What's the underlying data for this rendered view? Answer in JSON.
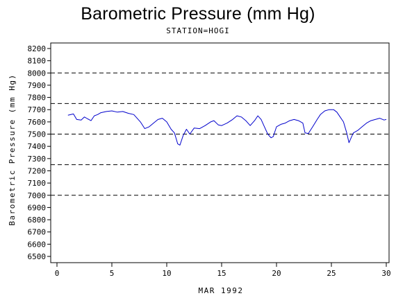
{
  "chart_data": {
    "type": "line",
    "title": "Barometric Pressure (mm Hg)",
    "subtitle": "STATION=HOGI",
    "xlabel": "MAR 1992",
    "ylabel": "Barometric Pressure (mm Hg)",
    "xlim": [
      0,
      30
    ],
    "ylim": [
      6500,
      8200
    ],
    "x_ticks": [
      0,
      5,
      10,
      15,
      20,
      25,
      30
    ],
    "y_ticks": [
      6500,
      6600,
      6700,
      6800,
      6900,
      7000,
      7100,
      7200,
      7300,
      7400,
      7500,
      7600,
      7700,
      7800,
      7900,
      8000,
      8100,
      8200
    ],
    "reference_lines": [
      7000,
      7250,
      7500,
      7750,
      8000
    ],
    "grid": false,
    "series": [
      {
        "color": "#0000cc",
        "x": [
          1.0,
          1.5,
          1.8,
          2.2,
          2.5,
          2.8,
          3.1,
          3.4,
          3.7,
          4.0,
          4.5,
          5.0,
          5.5,
          6.0,
          6.5,
          7.0,
          7.3,
          7.6,
          8.0,
          8.4,
          8.8,
          9.2,
          9.6,
          10.0,
          10.4,
          10.7,
          11.0,
          11.2,
          11.5,
          11.8,
          12.1,
          12.5,
          13.0,
          13.5,
          14.0,
          14.3,
          14.7,
          15.0,
          15.5,
          16.0,
          16.4,
          16.8,
          17.2,
          17.6,
          18.0,
          18.3,
          18.6,
          18.9,
          19.2,
          19.5,
          19.7,
          20.0,
          20.4,
          20.8,
          21.2,
          21.6,
          22.0,
          22.4,
          22.6,
          22.9,
          23.3,
          23.7,
          24.0,
          24.4,
          24.8,
          25.2,
          25.5,
          25.8,
          26.1,
          26.4,
          26.6,
          26.8,
          27.0,
          27.4,
          27.8,
          28.2,
          28.6,
          29.0,
          29.4,
          29.8,
          30.0
        ],
        "y": [
          7655,
          7665,
          7620,
          7615,
          7640,
          7625,
          7610,
          7650,
          7660,
          7675,
          7685,
          7690,
          7680,
          7685,
          7670,
          7660,
          7630,
          7600,
          7545,
          7560,
          7590,
          7620,
          7630,
          7600,
          7540,
          7510,
          7420,
          7410,
          7490,
          7540,
          7500,
          7550,
          7545,
          7570,
          7600,
          7610,
          7575,
          7570,
          7590,
          7620,
          7650,
          7640,
          7610,
          7570,
          7610,
          7650,
          7620,
          7560,
          7500,
          7470,
          7480,
          7560,
          7580,
          7590,
          7610,
          7620,
          7610,
          7590,
          7510,
          7505,
          7560,
          7620,
          7660,
          7690,
          7700,
          7700,
          7680,
          7640,
          7600,
          7510,
          7430,
          7470,
          7510,
          7530,
          7560,
          7590,
          7610,
          7620,
          7630,
          7615,
          7620
        ]
      }
    ]
  }
}
